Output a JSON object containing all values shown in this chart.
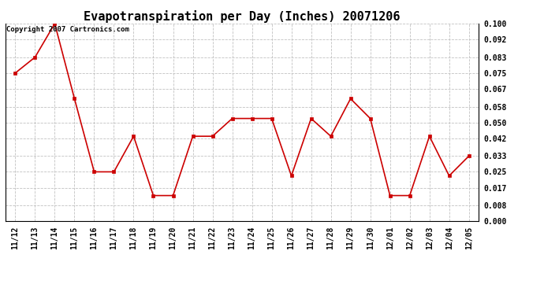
{
  "title": "Evapotranspiration per Day (Inches) 20071206",
  "copyright_text": "Copyright 2007 Cartronics.com",
  "x_labels": [
    "11/12",
    "11/13",
    "11/14",
    "11/15",
    "11/16",
    "11/17",
    "11/18",
    "11/19",
    "11/20",
    "11/21",
    "11/22",
    "11/23",
    "11/24",
    "11/25",
    "11/26",
    "11/27",
    "11/28",
    "11/29",
    "11/30",
    "12/01",
    "12/02",
    "12/03",
    "12/04",
    "12/05"
  ],
  "y_values": [
    0.075,
    0.083,
    0.1,
    0.062,
    0.025,
    0.025,
    0.043,
    0.013,
    0.013,
    0.043,
    0.043,
    0.052,
    0.052,
    0.052,
    0.023,
    0.052,
    0.043,
    0.062,
    0.052,
    0.013,
    0.013,
    0.043,
    0.023,
    0.033
  ],
  "line_color": "#cc0000",
  "marker": "s",
  "marker_size": 2.5,
  "background_color": "#ffffff",
  "grid_color": "#bbbbbb",
  "ylim": [
    0.0,
    0.1
  ],
  "yticks": [
    0.0,
    0.008,
    0.017,
    0.025,
    0.033,
    0.042,
    0.05,
    0.058,
    0.067,
    0.075,
    0.083,
    0.092,
    0.1
  ],
  "title_fontsize": 11,
  "tick_fontsize": 7,
  "copyright_fontsize": 6.5
}
